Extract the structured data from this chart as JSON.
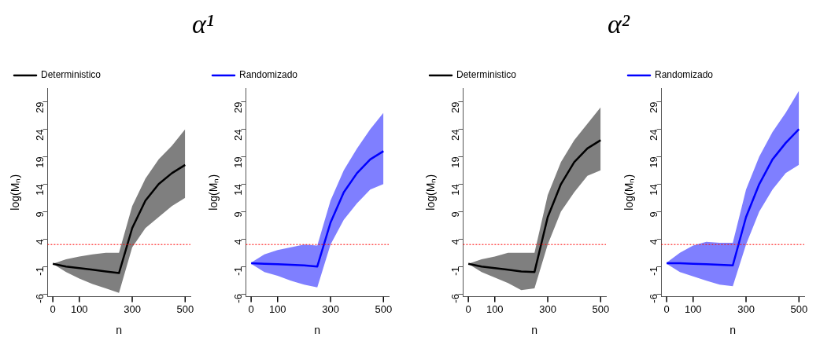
{
  "chart_data": [
    {
      "type": "line",
      "title": "α¹",
      "xlabel": "n",
      "ylabel": "log(Mₙ)",
      "x": [
        0,
        50,
        100,
        150,
        200,
        250,
        300,
        350,
        400,
        450,
        500
      ],
      "xlim": [
        -20,
        520
      ],
      "xticks": [
        0,
        100,
        300,
        500
      ],
      "ylim": [
        -6.5,
        31.5
      ],
      "yticks": [
        -6,
        -1,
        4,
        9,
        14,
        19,
        24,
        29
      ],
      "grid": false,
      "legend": "top",
      "marker": "none",
      "line_style": "solid",
      "series": [
        {
          "name": "Deterministico",
          "color": "#000000",
          "values": [
            -0.5,
            -1,
            -1.3,
            -1.6,
            -1.9,
            -2.2,
            6,
            11,
            14,
            16,
            17.5
          ],
          "lower": [
            -0.5,
            -2,
            -3.2,
            -4.2,
            -5,
            -5.8,
            2.5,
            6,
            8,
            10,
            11.5
          ],
          "upper": [
            -0.5,
            0.3,
            0.8,
            1.2,
            1.5,
            1.5,
            10,
            15,
            18.5,
            21,
            24
          ]
        }
      ],
      "ref_lines": [
        {
          "axis": "y",
          "value": 3,
          "color": "#ff0000",
          "line_style": "dotted"
        }
      ]
    },
    {
      "type": "line",
      "xlabel": "n",
      "ylabel": "log(Mₙ)",
      "x": [
        0,
        50,
        100,
        150,
        200,
        250,
        300,
        350,
        400,
        450,
        500
      ],
      "xlim": [
        -20,
        520
      ],
      "xticks": [
        0,
        100,
        300,
        500
      ],
      "ylim": [
        -6.5,
        31.5
      ],
      "yticks": [
        -6,
        -1,
        4,
        9,
        14,
        19,
        24,
        29
      ],
      "grid": false,
      "legend": "top",
      "marker": "none",
      "line_style": "solid",
      "series": [
        {
          "name": "Randomizado",
          "color": "#0000ff",
          "values": [
            -0.4,
            -0.5,
            -0.6,
            -0.7,
            -0.8,
            -1,
            7,
            12.5,
            16,
            18.5,
            20
          ],
          "lower": [
            -0.5,
            -2,
            -2.7,
            -3.6,
            -4.3,
            -4.8,
            3,
            7.5,
            10.5,
            13,
            14
          ],
          "upper": [
            -0.3,
            1.2,
            2,
            2.5,
            3,
            2.8,
            11,
            16.5,
            20.5,
            24,
            27
          ]
        }
      ],
      "ref_lines": [
        {
          "axis": "y",
          "value": 3,
          "color": "#ff0000",
          "line_style": "dotted"
        }
      ]
    },
    {
      "type": "line",
      "title": "α²",
      "xlabel": "n",
      "ylabel": "log(Mₙ)",
      "x": [
        0,
        50,
        100,
        150,
        200,
        250,
        300,
        350,
        400,
        450,
        500
      ],
      "xlim": [
        -20,
        520
      ],
      "xticks": [
        0,
        100,
        300,
        500
      ],
      "ylim": [
        -6.5,
        31.5
      ],
      "yticks": [
        -6,
        -1,
        4,
        9,
        14,
        19,
        24,
        29
      ],
      "grid": false,
      "legend": "top",
      "marker": "none",
      "line_style": "solid",
      "series": [
        {
          "name": "Deterministico",
          "color": "#000000",
          "values": [
            -0.5,
            -1,
            -1.3,
            -1.6,
            -1.9,
            -2,
            8,
            14,
            18,
            20.5,
            22
          ],
          "lower": [
            -0.5,
            -2,
            -3,
            -4,
            -5.3,
            -5,
            3,
            9,
            12.5,
            15.5,
            16.5
          ],
          "upper": [
            -0.5,
            0.3,
            0.8,
            1.5,
            1.5,
            1.5,
            12,
            18,
            22,
            25,
            28
          ]
        }
      ],
      "ref_lines": [
        {
          "axis": "y",
          "value": 3,
          "color": "#ff0000",
          "line_style": "dotted"
        }
      ]
    },
    {
      "type": "line",
      "xlabel": "n",
      "ylabel": "log(Mₙ)",
      "x": [
        0,
        50,
        100,
        150,
        200,
        250,
        300,
        350,
        400,
        450,
        500
      ],
      "xlim": [
        -20,
        520
      ],
      "xticks": [
        0,
        100,
        300,
        500
      ],
      "ylim": [
        -6.5,
        31.5
      ],
      "yticks": [
        -6,
        -1,
        4,
        9,
        14,
        19,
        24,
        29
      ],
      "grid": false,
      "legend": "top",
      "marker": "none",
      "line_style": "solid",
      "series": [
        {
          "name": "Randomizado",
          "color": "#0000ff",
          "values": [
            -0.4,
            -0.4,
            -0.5,
            -0.6,
            -0.7,
            -0.8,
            8,
            14,
            18.5,
            21.5,
            24
          ],
          "lower": [
            -0.5,
            -2,
            -2.8,
            -3.6,
            -4.3,
            -4.6,
            3,
            9,
            13,
            16,
            17.5
          ],
          "upper": [
            -0.3,
            1.5,
            2.8,
            3.5,
            3.3,
            3.3,
            13,
            19,
            23.5,
            27,
            31
          ]
        }
      ],
      "ref_lines": [
        {
          "axis": "y",
          "value": 3,
          "color": "#ff0000",
          "line_style": "dotted"
        }
      ]
    }
  ]
}
